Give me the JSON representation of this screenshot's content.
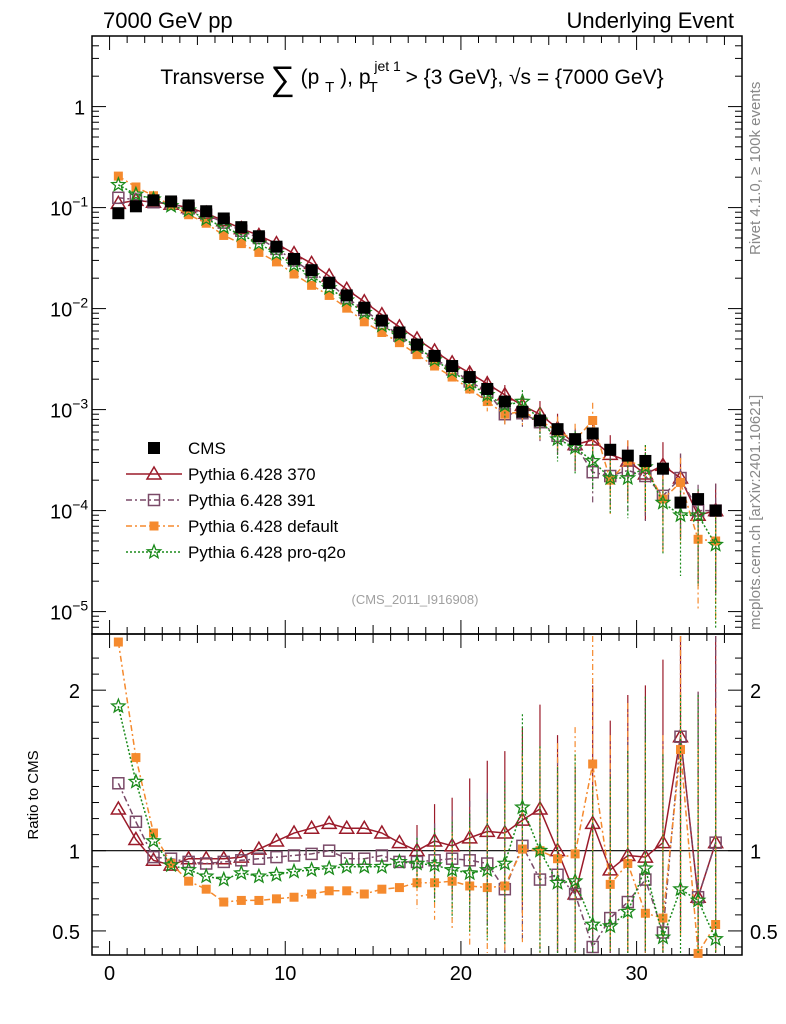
{
  "header": {
    "left": "7000 GeV pp",
    "right": "Underlying Event"
  },
  "side_labels": {
    "rivet": "Rivet 4.1.0, ≥ 100k events",
    "mcplots": "mcplots.cern.ch [arXiv:2401.10621]"
  },
  "colors": {
    "CMS": "#000000",
    "Pythia 6.428 370": "#9b1b2a",
    "Pythia 6.428 391": "#7a4a68",
    "Pythia 6.428 default": "#f58a2e",
    "Pythia 6.428 pro-q2o": "#1a8a1a"
  },
  "chart_data": [
    {
      "type": "scatter",
      "panel": "main",
      "title": "Transverse ∑(pT), pT jet 1 > {3 GeV}, √s = {7000 GeV}",
      "title_parts": {
        "lead": "Transverse",
        "sum": "∑",
        "open": "(p",
        "sub1": "T",
        "close": "),",
        "p": "p",
        "sup2": "jet 1",
        "sub2": "T",
        "cut": "> {3 GeV},",
        "sqrt": "√s",
        "energy": "= {7000 GeV}"
      },
      "analysis_label": "(CMS_2011_I916908)",
      "xlabel": "",
      "ylabel": "",
      "yscale": "log",
      "xlim": [
        -1,
        36
      ],
      "ylim": [
        6e-06,
        5
      ],
      "y_ticks": [
        {
          "value": 1e-05,
          "base": "10",
          "exp": "−5"
        },
        {
          "value": 0.0001,
          "base": "10",
          "exp": "−4"
        },
        {
          "value": 0.001,
          "base": "10",
          "exp": "−3"
        },
        {
          "value": 0.01,
          "base": "10",
          "exp": "−2"
        },
        {
          "value": 0.1,
          "base": "10",
          "exp": "−1"
        },
        {
          "value": 1,
          "base": "1",
          "exp": ""
        }
      ],
      "x": [
        0.5,
        1.5,
        2.5,
        3.5,
        4.5,
        5.5,
        6.5,
        7.5,
        8.5,
        9.5,
        10.5,
        11.5,
        12.5,
        13.5,
        14.5,
        15.5,
        16.5,
        17.5,
        18.5,
        19.5,
        20.5,
        21.5,
        22.5,
        23.5,
        24.5,
        25.5,
        26.5,
        27.5,
        28.5,
        29.5,
        30.5,
        31.5,
        32.5,
        33.5,
        34.5
      ],
      "legend_position": "lower-left",
      "series": [
        {
          "name": "CMS",
          "marker": "filled-square",
          "values": [
            0.088,
            0.103,
            0.118,
            0.115,
            0.105,
            0.092,
            0.078,
            0.064,
            0.052,
            0.041,
            0.031,
            0.024,
            0.018,
            0.0135,
            0.0102,
            0.0076,
            0.0058,
            0.0044,
            0.0034,
            0.0027,
            0.0021,
            0.0016,
            0.0012,
            0.00095,
            0.00078,
            0.00064,
            0.00051,
            0.00058,
            0.0004,
            0.00035,
            0.00031,
            0.00026,
            0.00012,
            0.00013,
            0.0001
          ]
        },
        {
          "name": "Pythia 6.428 370",
          "marker": "open-triangle",
          "line": "solid",
          "values": [
            0.11,
            0.118,
            0.113,
            0.108,
            0.1,
            0.088,
            0.074,
            0.062,
            0.053,
            0.044,
            0.035,
            0.028,
            0.021,
            0.0155,
            0.0117,
            0.0087,
            0.0066,
            0.005,
            0.0038,
            0.0029,
            0.0023,
            0.0018,
            0.0014,
            0.0011,
            0.0009,
            0.00065,
            0.00045,
            0.0005,
            0.00036,
            0.00031,
            0.00023,
            0.00028,
            0.00021,
            9e-05,
            0.0001
          ]
        },
        {
          "name": "Pythia 6.428 391",
          "marker": "open-square",
          "line": "dashdot",
          "values": [
            0.125,
            0.12,
            0.113,
            0.11,
            0.098,
            0.085,
            0.071,
            0.059,
            0.05,
            0.039,
            0.03,
            0.023,
            0.018,
            0.0128,
            0.0097,
            0.0072,
            0.0054,
            0.0041,
            0.0032,
            0.0025,
            0.0019,
            0.0015,
            0.0009,
            0.00092,
            0.00075,
            0.00055,
            0.00045,
            0.00024,
            0.00022,
            0.00025,
            0.00022,
            0.00014,
            0.00021,
            0.0001,
            0.0001
          ]
        },
        {
          "name": "Pythia 6.428 default",
          "marker": "filled-square-small",
          "line": "dashdot",
          "values": [
            0.205,
            0.16,
            0.131,
            0.105,
            0.085,
            0.07,
            0.053,
            0.044,
            0.036,
            0.029,
            0.022,
            0.017,
            0.0135,
            0.0101,
            0.0074,
            0.0058,
            0.0046,
            0.0035,
            0.0027,
            0.0021,
            0.0016,
            0.0012,
            0.0009,
            0.00096,
            0.00078,
            0.00061,
            0.0005,
            0.00078,
            0.0002,
            0.00031,
            0.00027,
            0.00013,
            0.00019,
            5.2e-05,
            5e-05
          ]
        },
        {
          "name": "Pythia 6.428 pro-q2o",
          "marker": "star",
          "line": "dotted",
          "values": [
            0.168,
            0.135,
            0.121,
            0.104,
            0.094,
            0.077,
            0.064,
            0.054,
            0.044,
            0.035,
            0.027,
            0.021,
            0.016,
            0.0121,
            0.0091,
            0.0068,
            0.0054,
            0.0042,
            0.0031,
            0.0024,
            0.0018,
            0.0014,
            0.0011,
            0.0012,
            0.00078,
            0.00051,
            0.00042,
            0.00031,
            0.00021,
            0.00021,
            0.00027,
            0.00012,
            9e-05,
            9e-05,
            4.6e-05
          ]
        }
      ]
    },
    {
      "type": "scatter",
      "panel": "ratio",
      "xlabel": "",
      "ylabel": "Ratio to CMS",
      "yscale": "linear",
      "xlim": [
        -1,
        36
      ],
      "ylim": [
        0.35,
        2.35
      ],
      "y_tick_labels": [
        "0.5",
        "1",
        "2"
      ],
      "y_tick_values": [
        0.5,
        1,
        2
      ],
      "x_tick_labels": [
        "0",
        "10",
        "20",
        "30"
      ],
      "x_tick_values": [
        0,
        10,
        20,
        30
      ],
      "reference_line": 1,
      "x": [
        0.5,
        1.5,
        2.5,
        3.5,
        4.5,
        5.5,
        6.5,
        7.5,
        8.5,
        9.5,
        10.5,
        11.5,
        12.5,
        13.5,
        14.5,
        15.5,
        16.5,
        17.5,
        18.5,
        19.5,
        20.5,
        21.5,
        22.5,
        23.5,
        24.5,
        25.5,
        26.5,
        27.5,
        28.5,
        29.5,
        30.5,
        31.5,
        32.5,
        33.5,
        34.5
      ],
      "series": [
        {
          "name": "Pythia 6.428 370",
          "values": [
            1.26,
            1.07,
            0.94,
            0.91,
            0.95,
            0.95,
            0.95,
            0.96,
            1.01,
            1.06,
            1.11,
            1.14,
            1.17,
            1.14,
            1.14,
            1.11,
            1.05,
            1.0,
            1.06,
            1.03,
            1.08,
            1.12,
            1.11,
            1.19,
            1.26,
            1.0,
            0.73,
            1.17,
            0.88,
            0.97,
            0.96,
            1.05,
            1.71,
            0.71,
            1.05
          ]
        },
        {
          "name": "Pythia 6.428 391",
          "values": [
            1.42,
            1.18,
            0.96,
            0.95,
            0.93,
            0.92,
            0.93,
            0.94,
            0.95,
            0.96,
            0.97,
            0.98,
            1.0,
            0.95,
            0.95,
            0.97,
            0.93,
            0.93,
            0.94,
            0.95,
            0.94,
            0.92,
            0.76,
            1.03,
            0.82,
            0.85,
            0.73,
            0.4,
            0.58,
            0.68,
            0.82,
            0.49,
            1.71,
            0.71,
            1.05
          ]
        },
        {
          "name": "Pythia 6.428 default",
          "values": [
            2.3,
            1.58,
            1.11,
            0.92,
            0.81,
            0.76,
            0.68,
            0.69,
            0.69,
            0.7,
            0.71,
            0.73,
            0.75,
            0.75,
            0.73,
            0.76,
            0.77,
            0.8,
            0.8,
            0.81,
            0.78,
            0.77,
            0.78,
            1.01,
            1.0,
            0.95,
            0.98,
            1.54,
            0.79,
            0.92,
            0.61,
            0.58,
            1.63,
            0.36,
            0.54
          ]
        },
        {
          "name": "Pythia 6.428 pro-q2o",
          "values": [
            1.9,
            1.43,
            1.06,
            0.91,
            0.88,
            0.84,
            0.82,
            0.86,
            0.84,
            0.85,
            0.87,
            0.88,
            0.89,
            0.9,
            0.9,
            0.9,
            0.93,
            0.92,
            0.91,
            0.88,
            0.86,
            0.88,
            0.92,
            1.27,
            1.0,
            0.8,
            0.81,
            0.54,
            0.53,
            0.62,
            0.89,
            0.46,
            0.76,
            0.69,
            0.45
          ]
        }
      ]
    }
  ]
}
